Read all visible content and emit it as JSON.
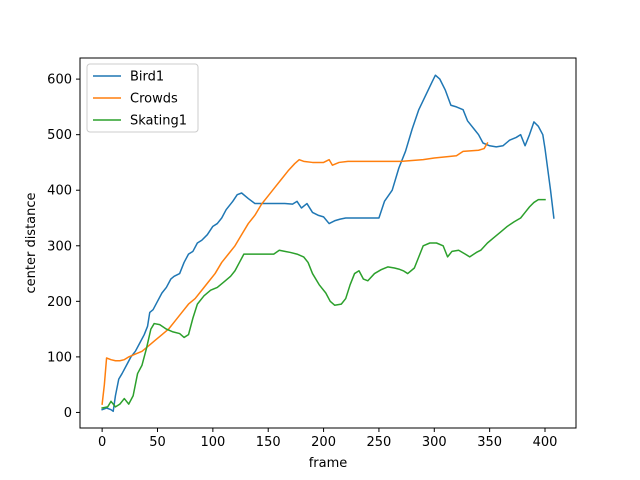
{
  "chart_data": {
    "type": "line",
    "xlabel": "frame",
    "ylabel": "center distance",
    "xlim": [
      -20,
      428
    ],
    "ylim": [
      -28,
      638
    ],
    "xticks": [
      0,
      50,
      100,
      150,
      200,
      250,
      300,
      350,
      400
    ],
    "yticks": [
      0,
      100,
      200,
      300,
      400,
      500,
      600
    ],
    "grid": false,
    "legend_position": "top-left",
    "series": [
      {
        "name": "Bird1",
        "color": "#1f77b4",
        "points": [
          [
            0,
            5
          ],
          [
            4,
            8
          ],
          [
            8,
            5
          ],
          [
            10,
            2
          ],
          [
            12,
            30
          ],
          [
            15,
            60
          ],
          [
            18,
            70
          ],
          [
            22,
            85
          ],
          [
            26,
            100
          ],
          [
            30,
            110
          ],
          [
            34,
            125
          ],
          [
            38,
            140
          ],
          [
            41,
            155
          ],
          [
            43,
            180
          ],
          [
            46,
            185
          ],
          [
            50,
            200
          ],
          [
            54,
            215
          ],
          [
            58,
            225
          ],
          [
            62,
            240
          ],
          [
            65,
            245
          ],
          [
            70,
            250
          ],
          [
            74,
            270
          ],
          [
            78,
            285
          ],
          [
            82,
            290
          ],
          [
            86,
            305
          ],
          [
            90,
            310
          ],
          [
            95,
            320
          ],
          [
            100,
            335
          ],
          [
            104,
            340
          ],
          [
            108,
            350
          ],
          [
            112,
            365
          ],
          [
            118,
            380
          ],
          [
            122,
            392
          ],
          [
            126,
            395
          ],
          [
            132,
            385
          ],
          [
            138,
            376
          ],
          [
            145,
            376
          ],
          [
            155,
            376
          ],
          [
            165,
            376
          ],
          [
            172,
            375
          ],
          [
            176,
            380
          ],
          [
            180,
            368
          ],
          [
            185,
            376
          ],
          [
            190,
            360
          ],
          [
            195,
            355
          ],
          [
            200,
            352
          ],
          [
            205,
            340
          ],
          [
            210,
            345
          ],
          [
            215,
            348
          ],
          [
            220,
            350
          ],
          [
            230,
            350
          ],
          [
            240,
            350
          ],
          [
            250,
            350
          ],
          [
            255,
            380
          ],
          [
            262,
            400
          ],
          [
            268,
            440
          ],
          [
            274,
            470
          ],
          [
            280,
            510
          ],
          [
            286,
            545
          ],
          [
            292,
            570
          ],
          [
            298,
            595
          ],
          [
            301,
            607
          ],
          [
            305,
            600
          ],
          [
            310,
            580
          ],
          [
            315,
            553
          ],
          [
            320,
            550
          ],
          [
            326,
            545
          ],
          [
            330,
            525
          ],
          [
            336,
            510
          ],
          [
            340,
            500
          ],
          [
            344,
            485
          ],
          [
            350,
            480
          ],
          [
            356,
            478
          ],
          [
            362,
            480
          ],
          [
            368,
            490
          ],
          [
            374,
            495
          ],
          [
            378,
            500
          ],
          [
            382,
            480
          ],
          [
            386,
            500
          ],
          [
            390,
            523
          ],
          [
            394,
            515
          ],
          [
            398,
            500
          ],
          [
            400,
            475
          ],
          [
            403,
            430
          ],
          [
            405,
            400
          ],
          [
            408,
            350
          ]
        ]
      },
      {
        "name": "Crowds",
        "color": "#ff7f0e",
        "points": [
          [
            0,
            15
          ],
          [
            2,
            50
          ],
          [
            4,
            98
          ],
          [
            8,
            95
          ],
          [
            12,
            93
          ],
          [
            16,
            93
          ],
          [
            20,
            95
          ],
          [
            24,
            100
          ],
          [
            30,
            105
          ],
          [
            36,
            110
          ],
          [
            42,
            120
          ],
          [
            48,
            130
          ],
          [
            54,
            140
          ],
          [
            60,
            150
          ],
          [
            66,
            165
          ],
          [
            72,
            180
          ],
          [
            78,
            195
          ],
          [
            84,
            205
          ],
          [
            90,
            220
          ],
          [
            96,
            235
          ],
          [
            102,
            250
          ],
          [
            108,
            270
          ],
          [
            114,
            285
          ],
          [
            120,
            300
          ],
          [
            126,
            320
          ],
          [
            132,
            340
          ],
          [
            138,
            355
          ],
          [
            144,
            375
          ],
          [
            150,
            390
          ],
          [
            156,
            405
          ],
          [
            162,
            420
          ],
          [
            168,
            435
          ],
          [
            174,
            448
          ],
          [
            178,
            455
          ],
          [
            182,
            452
          ],
          [
            190,
            450
          ],
          [
            200,
            450
          ],
          [
            205,
            455
          ],
          [
            208,
            445
          ],
          [
            214,
            450
          ],
          [
            222,
            452
          ],
          [
            230,
            452
          ],
          [
            250,
            452
          ],
          [
            270,
            452
          ],
          [
            290,
            455
          ],
          [
            300,
            458
          ],
          [
            310,
            460
          ],
          [
            320,
            462
          ],
          [
            326,
            470
          ],
          [
            340,
            472
          ],
          [
            345,
            475
          ],
          [
            348,
            485
          ]
        ]
      },
      {
        "name": "Skating1",
        "color": "#2ca02c",
        "points": [
          [
            0,
            8
          ],
          [
            5,
            10
          ],
          [
            8,
            20
          ],
          [
            12,
            10
          ],
          [
            16,
            15
          ],
          [
            20,
            25
          ],
          [
            24,
            15
          ],
          [
            28,
            30
          ],
          [
            32,
            70
          ],
          [
            36,
            85
          ],
          [
            40,
            115
          ],
          [
            44,
            150
          ],
          [
            47,
            160
          ],
          [
            52,
            158
          ],
          [
            58,
            150
          ],
          [
            64,
            145
          ],
          [
            70,
            142
          ],
          [
            74,
            135
          ],
          [
            78,
            140
          ],
          [
            82,
            170
          ],
          [
            86,
            195
          ],
          [
            92,
            210
          ],
          [
            98,
            220
          ],
          [
            104,
            225
          ],
          [
            110,
            235
          ],
          [
            116,
            245
          ],
          [
            120,
            255
          ],
          [
            124,
            270
          ],
          [
            128,
            285
          ],
          [
            135,
            285
          ],
          [
            145,
            285
          ],
          [
            155,
            285
          ],
          [
            160,
            292
          ],
          [
            165,
            290
          ],
          [
            170,
            288
          ],
          [
            176,
            285
          ],
          [
            182,
            280
          ],
          [
            186,
            270
          ],
          [
            190,
            250
          ],
          [
            196,
            230
          ],
          [
            202,
            215
          ],
          [
            206,
            200
          ],
          [
            210,
            193
          ],
          [
            216,
            195
          ],
          [
            220,
            205
          ],
          [
            224,
            230
          ],
          [
            228,
            250
          ],
          [
            232,
            255
          ],
          [
            236,
            240
          ],
          [
            240,
            237
          ],
          [
            246,
            250
          ],
          [
            252,
            257
          ],
          [
            258,
            262
          ],
          [
            264,
            260
          ],
          [
            268,
            258
          ],
          [
            272,
            255
          ],
          [
            276,
            250
          ],
          [
            282,
            260
          ],
          [
            286,
            280
          ],
          [
            290,
            300
          ],
          [
            296,
            305
          ],
          [
            302,
            305
          ],
          [
            308,
            300
          ],
          [
            312,
            280
          ],
          [
            316,
            290
          ],
          [
            322,
            292
          ],
          [
            328,
            285
          ],
          [
            332,
            280
          ],
          [
            338,
            288
          ],
          [
            342,
            292
          ],
          [
            348,
            305
          ],
          [
            354,
            315
          ],
          [
            360,
            325
          ],
          [
            366,
            335
          ],
          [
            372,
            343
          ],
          [
            378,
            350
          ],
          [
            382,
            360
          ],
          [
            386,
            370
          ],
          [
            390,
            378
          ],
          [
            394,
            383
          ],
          [
            400,
            383
          ]
        ]
      }
    ]
  }
}
